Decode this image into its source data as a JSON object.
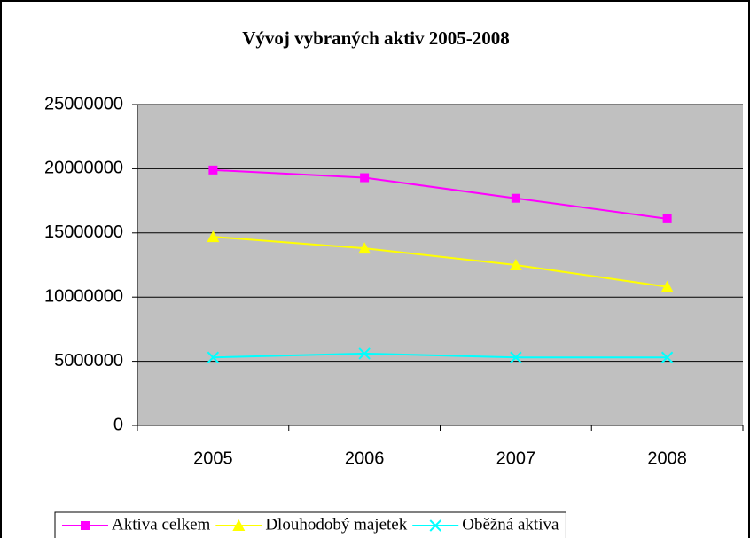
{
  "chart_data": {
    "type": "line",
    "title": "Vývoj vybraných aktiv 2005-2008",
    "categories": [
      "2005",
      "2006",
      "2007",
      "2008"
    ],
    "series": [
      {
        "name": "Aktiva celkem",
        "color": "#ff00ff",
        "marker": "square",
        "values": [
          19900000,
          19300000,
          17700000,
          16100000
        ]
      },
      {
        "name": "Dlouhodobý majetek",
        "color": "#ffff00",
        "marker": "triangle",
        "values": [
          14700000,
          13800000,
          12500000,
          10800000
        ]
      },
      {
        "name": "Oběžná aktiva",
        "color": "#00ffff",
        "marker": "x",
        "values": [
          5300000,
          5600000,
          5300000,
          5300000
        ]
      }
    ],
    "ylim": [
      0,
      25000000
    ],
    "yticks": [
      0,
      5000000,
      10000000,
      15000000,
      20000000,
      25000000
    ],
    "grid": true,
    "legend": "bottom"
  }
}
